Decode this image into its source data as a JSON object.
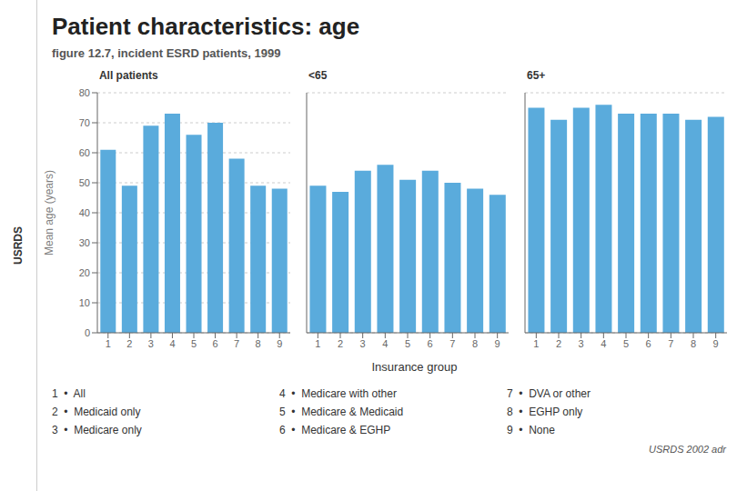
{
  "title": "Patient characteristics: age",
  "subtitle": "figure 12.7, incident ESRD patients, 1999",
  "xlabel": "Insurance group",
  "annotations": [
    "USRDS",
    "1  •  All",
    "2  •  Medicaid only",
    "3  •  Medicare only",
    "4  •  Medicare with other",
    "5  •  Medicare & Medicaid",
    "6  •  Medicare & EGHP",
    "7  •  DVA or other",
    "8  •  EGHP only",
    "9  •  None",
    "USRDS 2002 adr"
  ],
  "chart_data": [
    {
      "type": "bar",
      "title": "All patients",
      "categories": [
        "1",
        "2",
        "3",
        "4",
        "5",
        "6",
        "7",
        "8",
        "9"
      ],
      "values": [
        61,
        49,
        69,
        73,
        66,
        70,
        58,
        49,
        48
      ],
      "color": "#5aabdc",
      "ylabel": "Mean age (years)",
      "ylim": [
        0,
        80
      ],
      "yticks": [
        0,
        10,
        20,
        30,
        40,
        50,
        60,
        70,
        80
      ],
      "grid": true
    },
    {
      "type": "bar",
      "title": "<65",
      "categories": [
        "1",
        "2",
        "3",
        "4",
        "5",
        "6",
        "7",
        "8",
        "9"
      ],
      "values": [
        49,
        47,
        54,
        56,
        51,
        54,
        50,
        48,
        46
      ],
      "color": "#5aabdc",
      "ylim": [
        0,
        80
      ],
      "yticks": [
        0,
        10,
        20,
        30,
        40,
        50,
        60,
        70,
        80
      ],
      "grid": true,
      "tick_labels": "x"
    },
    {
      "type": "bar",
      "title": "65+",
      "categories": [
        "1",
        "2",
        "3",
        "4",
        "5",
        "6",
        "7",
        "8",
        "9"
      ],
      "values": [
        75,
        71,
        75,
        76,
        73,
        73,
        73,
        71,
        72
      ],
      "color": "#5aabdc",
      "ylim": [
        0,
        80
      ],
      "yticks": [
        0,
        10,
        20,
        30,
        40,
        50,
        60,
        70,
        80
      ],
      "grid": true,
      "tick_labels": "x"
    }
  ]
}
